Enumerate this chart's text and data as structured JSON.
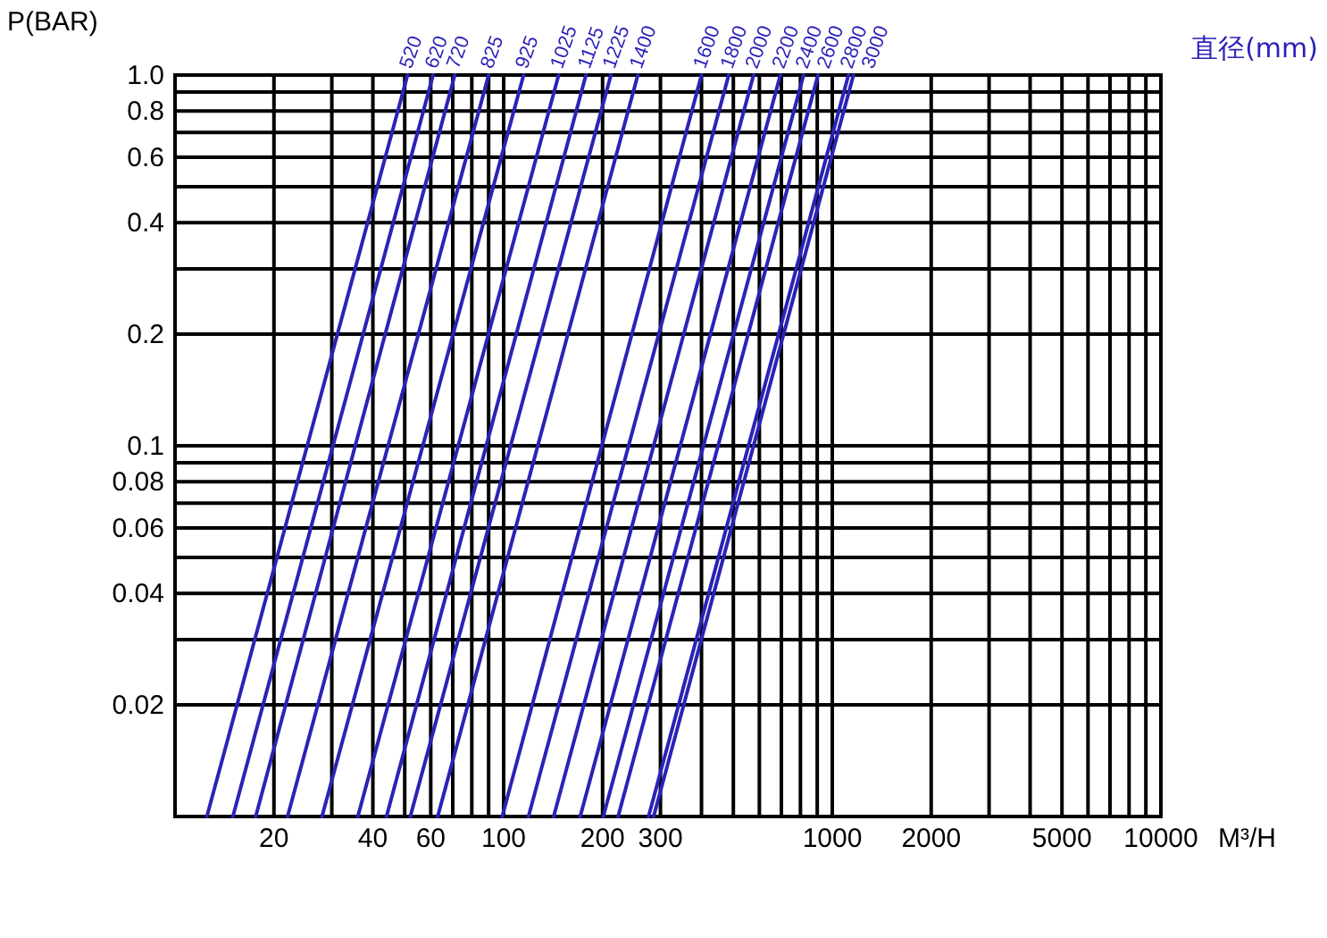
{
  "chart_data": {
    "type": "line",
    "xlabel": "M³/H",
    "ylabel": "P(BAR)",
    "legend_title": "直径(mm)",
    "log": "xy",
    "grid": true,
    "marker": "none",
    "line_style": "solid",
    "xlim": [
      10,
      10000
    ],
    "ylim": [
      0.01,
      1
    ],
    "xticks": [
      20,
      40,
      60,
      100,
      200,
      300,
      1000,
      2000,
      5000,
      10000
    ],
    "yticks": [
      {
        "value": 1,
        "label": "1.0"
      },
      0.8,
      0.6,
      0.4,
      0.2,
      0.1,
      0.08,
      0.06,
      0.04,
      0.02
    ],
    "series": [
      {
        "name": "520",
        "color": "#2b22b8",
        "x": [
          51,
          12.5
        ],
        "values": [
          1,
          0.01
        ]
      },
      {
        "name": "620",
        "color": "#2b22b8",
        "x": [
          61,
          15
        ],
        "values": [
          1,
          0.01
        ]
      },
      {
        "name": "720",
        "color": "#2b22b8",
        "x": [
          71,
          17.6
        ],
        "values": [
          1,
          0.01
        ]
      },
      {
        "name": "825",
        "color": "#2b22b8",
        "x": [
          90,
          22
        ],
        "values": [
          1,
          0.01
        ]
      },
      {
        "name": "925",
        "color": "#2b22b8",
        "x": [
          115,
          28
        ],
        "values": [
          1,
          0.01
        ]
      },
      {
        "name": "1025",
        "color": "#2b22b8",
        "x": [
          147,
          36
        ],
        "values": [
          1,
          0.01
        ]
      },
      {
        "name": "1125",
        "color": "#2b22b8",
        "x": [
          178,
          44
        ],
        "values": [
          1,
          0.01
        ]
      },
      {
        "name": "1225",
        "color": "#2b22b8",
        "x": [
          212,
          52
        ],
        "values": [
          1,
          0.01
        ]
      },
      {
        "name": "1400",
        "color": "#2b22b8",
        "x": [
          256,
          63
        ],
        "values": [
          1,
          0.01
        ]
      },
      {
        "name": "1600",
        "color": "#2b22b8",
        "x": [
          400,
          99
        ],
        "values": [
          1,
          0.01
        ]
      },
      {
        "name": "1800",
        "color": "#2b22b8",
        "x": [
          484,
          119
        ],
        "values": [
          1,
          0.01
        ]
      },
      {
        "name": "2000",
        "color": "#2b22b8",
        "x": [
          576,
          142
        ],
        "values": [
          1,
          0.01
        ]
      },
      {
        "name": "2200",
        "color": "#2b22b8",
        "x": [
          695,
          171
        ],
        "values": [
          1,
          0.01
        ]
      },
      {
        "name": "2400",
        "color": "#2b22b8",
        "x": [
          818,
          201
        ],
        "values": [
          1,
          0.01
        ]
      },
      {
        "name": "2600",
        "color": "#2b22b8",
        "x": [
          905,
          223
        ],
        "values": [
          1,
          0.01
        ]
      },
      {
        "name": "2800",
        "color": "#2b22b8",
        "x": [
          1120,
          276
        ],
        "values": [
          1,
          0.01
        ]
      },
      {
        "name": "3000",
        "color": "#2b22b8",
        "x": [
          1160,
          286
        ],
        "values": [
          1,
          0.01
        ]
      }
    ]
  }
}
